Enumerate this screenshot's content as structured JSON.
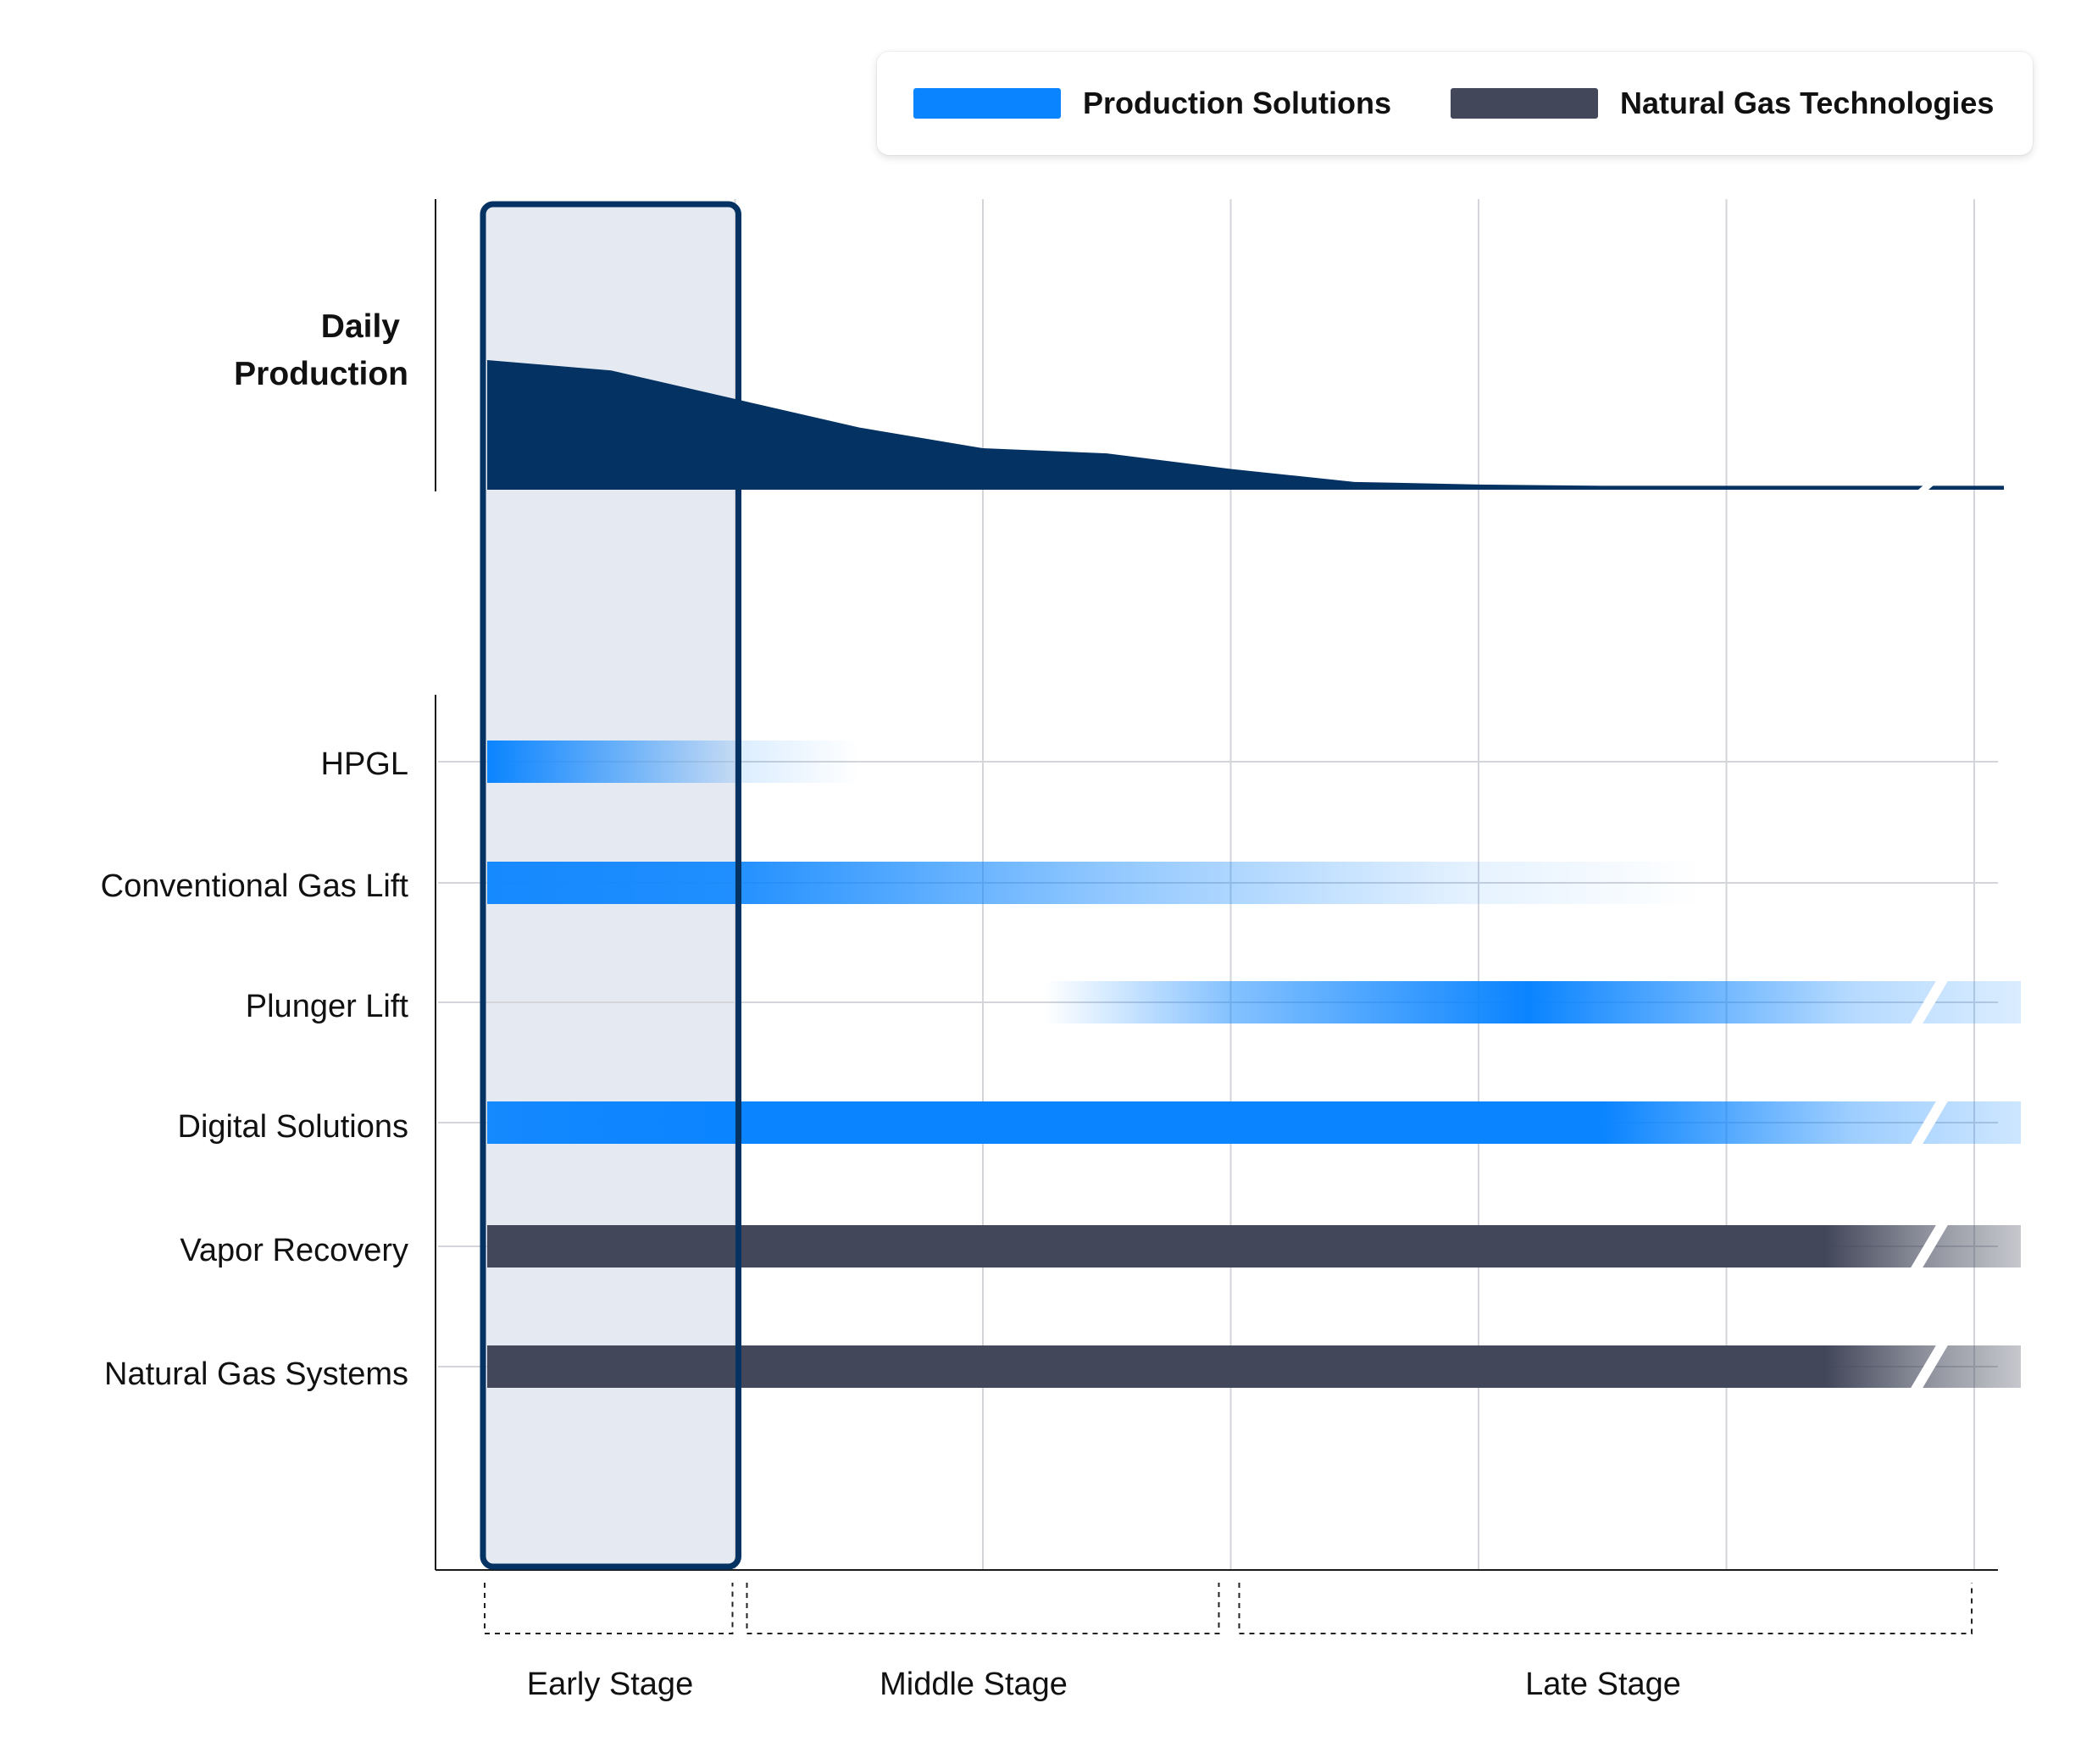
{
  "legend": {
    "items": [
      {
        "label": "Production Solutions",
        "color": "#0a84ff"
      },
      {
        "label": "Natural Gas Technologies",
        "color": "#42475a"
      }
    ]
  },
  "chart_data": {
    "type": "area",
    "production": {
      "label_line1": "Daily",
      "label_line2": "Production",
      "color": "#033263",
      "x": [
        0,
        0.5,
        1,
        1.5,
        2,
        2.5,
        3,
        3.25,
        3.5,
        4,
        4.5,
        5,
        5.5,
        6
      ],
      "values": [
        100,
        92,
        70,
        48,
        32,
        28,
        16,
        11,
        6,
        4,
        3,
        3,
        3,
        3
      ]
    },
    "stages": [
      {
        "label": "Early Stage",
        "start": 0,
        "end": 1
      },
      {
        "label": "Middle Stage",
        "start": 1,
        "end": 3
      },
      {
        "label": "Late Stage",
        "start": 3,
        "end": 6
      }
    ],
    "highlight_stage": "Early Stage",
    "x_range": [
      0,
      6
    ],
    "continues_beyond_axis": true,
    "technologies": [
      {
        "name": "HPGL",
        "group": "Production Solutions",
        "gradient": [
          [
            0,
            1
          ],
          [
            0.55,
            0.55
          ],
          [
            1,
            0.15
          ],
          [
            1.5,
            0
          ]
        ]
      },
      {
        "name": "Conventional Gas Lift",
        "group": "Production Solutions",
        "gradient": [
          [
            0,
            0.95
          ],
          [
            1,
            0.9
          ],
          [
            2.5,
            0.45
          ],
          [
            4,
            0.1
          ],
          [
            4.9,
            0
          ]
        ]
      },
      {
        "name": "Plunger Lift",
        "group": "Production Solutions",
        "gradient": [
          [
            2.25,
            0
          ],
          [
            3,
            0.5
          ],
          [
            4.2,
            1
          ],
          [
            5.5,
            0.3
          ],
          [
            6.2,
            0.15
          ]
        ]
      },
      {
        "name": "Digital Solutions",
        "group": "Production Solutions",
        "gradient": [
          [
            0,
            0.95
          ],
          [
            1,
            1
          ],
          [
            4.5,
            1
          ],
          [
            5.5,
            0.4
          ],
          [
            6.2,
            0.2
          ]
        ]
      },
      {
        "name": "Vapor Recovery",
        "group": "Natural Gas Technologies",
        "gradient": [
          [
            0,
            1
          ],
          [
            5.4,
            1
          ],
          [
            5.8,
            0.6
          ],
          [
            6.2,
            0.3
          ]
        ]
      },
      {
        "name": "Natural Gas Systems",
        "group": "Natural Gas Technologies",
        "gradient": [
          [
            0,
            1
          ],
          [
            5.4,
            1
          ],
          [
            5.8,
            0.6
          ],
          [
            6.2,
            0.3
          ]
        ]
      }
    ],
    "grid": true,
    "legend_position": "top-right"
  }
}
